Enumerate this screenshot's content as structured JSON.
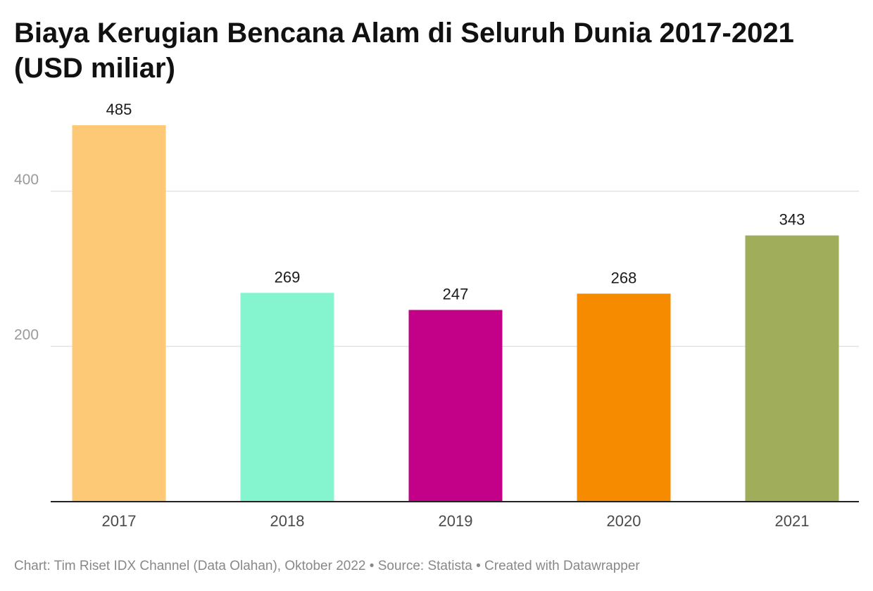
{
  "chart_data": {
    "type": "bar",
    "title": "Biaya Kerugian Bencana Alam di Seluruh Dunia 2017-2021 (USD miliar)",
    "categories": [
      "2017",
      "2018",
      "2019",
      "2020",
      "2021"
    ],
    "values": [
      485,
      269,
      247,
      268,
      343
    ],
    "value_labels": [
      "485",
      "269",
      "247",
      "268",
      "343"
    ],
    "colors": [
      "#fdc977",
      "#84f5cf",
      "#c20088",
      "#f78b00",
      "#a0ad5a"
    ],
    "yticks": [
      200,
      400
    ],
    "ytick_labels": [
      "200",
      "400"
    ],
    "ylim": [
      0,
      485
    ],
    "xlabel": "",
    "ylabel": "",
    "grid": true,
    "legend": "none"
  },
  "footer": {
    "text": "Chart: Tim Riset IDX Channel (Data Olahan), Oktober 2022 • Source: Statista • Created with Datawrapper"
  }
}
